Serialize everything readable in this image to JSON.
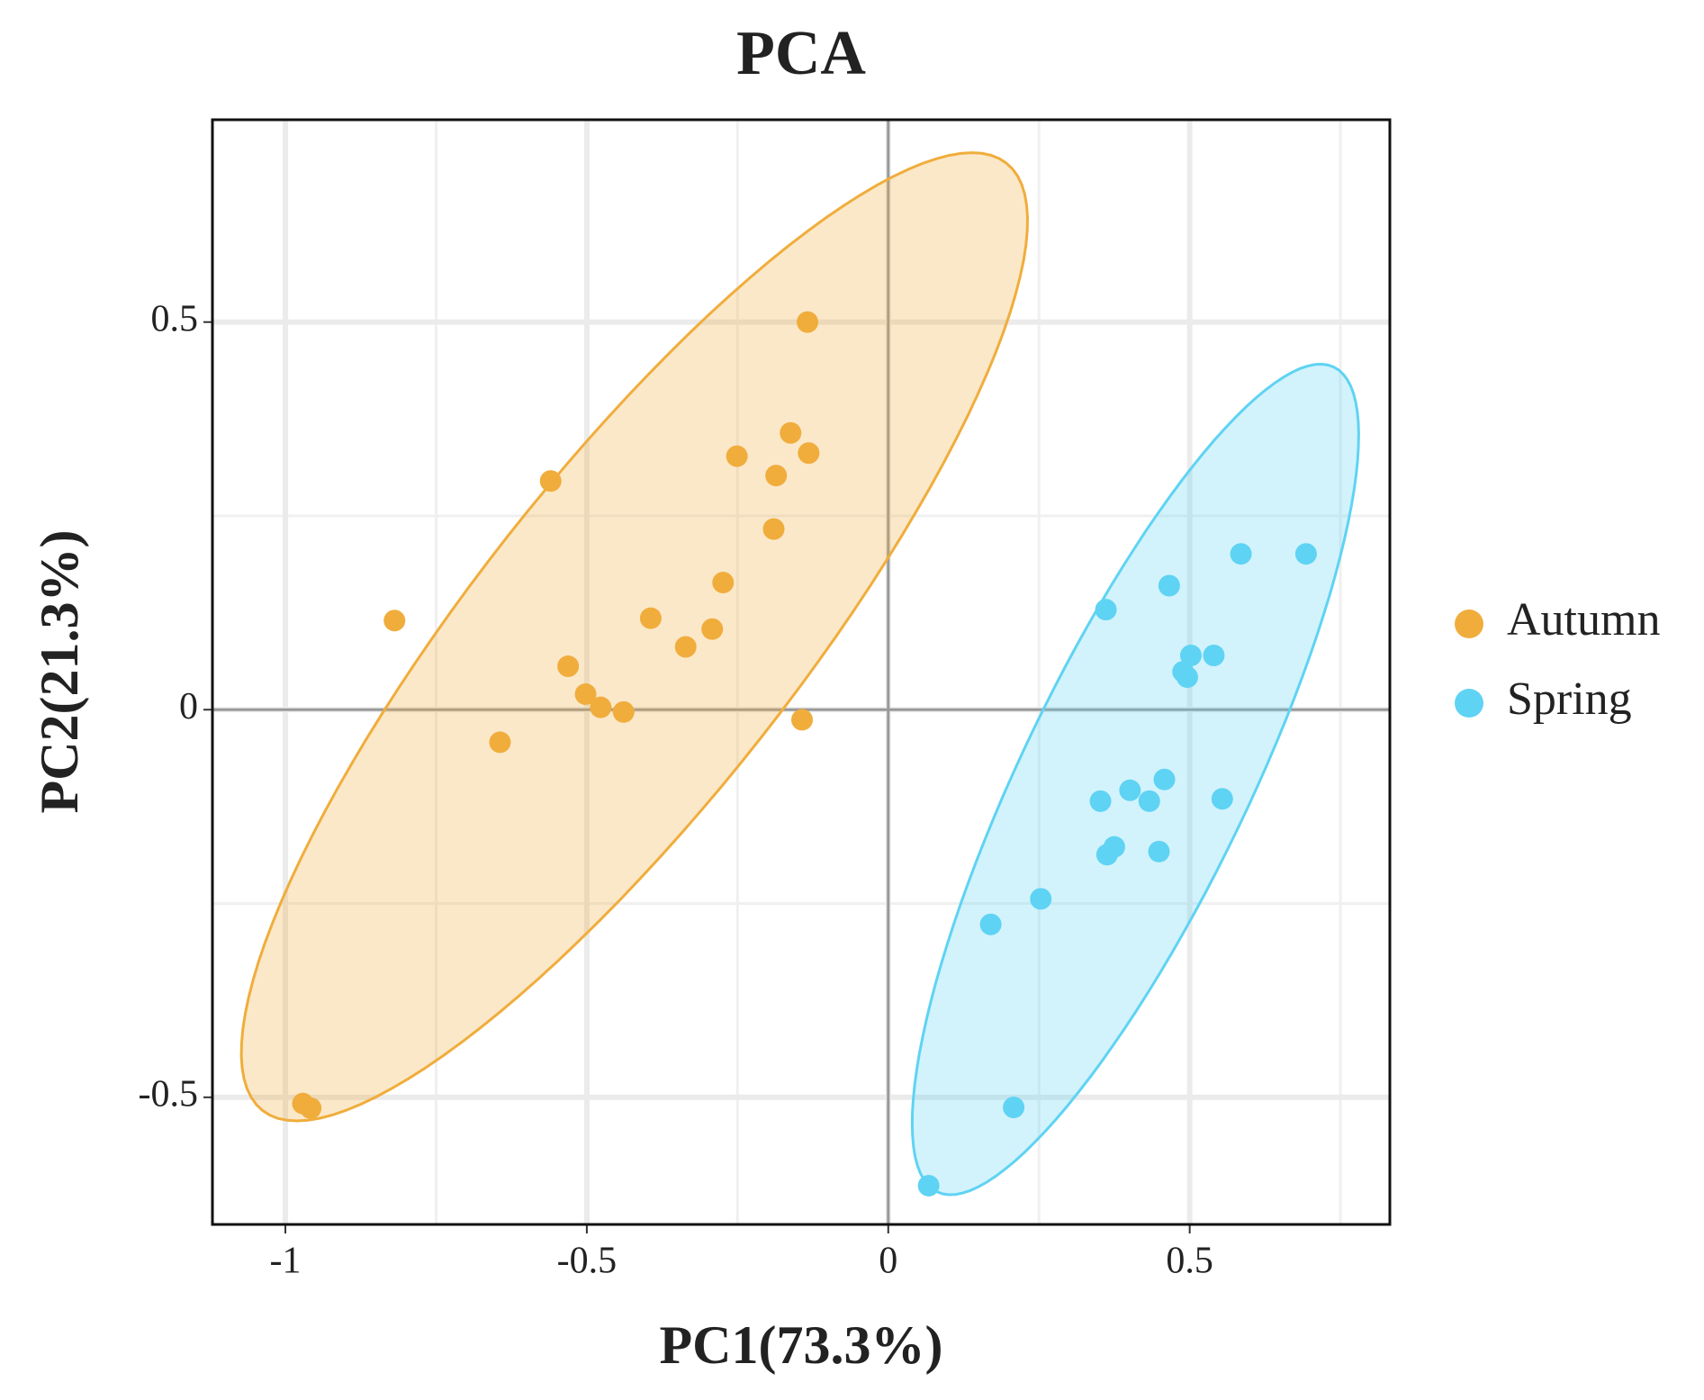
{
  "chart_data": {
    "type": "scatter",
    "title": "PCA",
    "x_label": "PC1(73.3%)",
    "y_label": "PC2(21.3%)",
    "xlim": [
      -1.121,
      0.832
    ],
    "ylim": [
      -0.664,
      0.761
    ],
    "xticks": [
      -1,
      -0.5,
      0,
      0.5
    ],
    "yticks": [
      -0.5,
      0,
      0.5
    ],
    "xminor_ticks": [
      -0.75,
      -0.25,
      0.25,
      0.75
    ],
    "yminor_ticks": [
      -0.25,
      0.25
    ],
    "grid": true,
    "legend": "right",
    "series": [
      {
        "name": "Autumn",
        "color": "#f0ad3c",
        "x": [
          -0.134,
          -0.162,
          -0.251,
          -0.132,
          -0.186,
          -0.56,
          -0.19,
          -0.274,
          -0.819,
          -0.394,
          -0.292,
          -0.336,
          -0.531,
          -0.502,
          -0.477,
          -0.439,
          -0.143,
          -0.644,
          -0.971,
          -0.958
        ],
        "values": [
          0.5,
          0.357,
          0.327,
          0.331,
          0.302,
          0.295,
          0.233,
          0.164,
          0.115,
          0.118,
          0.104,
          0.081,
          0.056,
          0.02,
          0.003,
          -0.003,
          -0.013,
          -0.042,
          -0.508,
          -0.514
        ],
        "ellipse": {
          "center": [
            -0.421,
            0.094
          ],
          "axis1": [
            0.617,
            0.611
          ],
          "axis2": [
            0.211,
            -0.129
          ]
        }
      },
      {
        "name": "Spring",
        "color": "#5fd3f3",
        "x": [
          0.585,
          0.693,
          0.466,
          0.361,
          0.502,
          0.54,
          0.489,
          0.496,
          0.458,
          0.401,
          0.352,
          0.433,
          0.554,
          0.375,
          0.363,
          0.449,
          0.253,
          0.17,
          0.208,
          0.067
        ],
        "values": [
          0.201,
          0.201,
          0.16,
          0.129,
          0.07,
          0.07,
          0.049,
          0.042,
          -0.09,
          -0.104,
          -0.118,
          -0.118,
          -0.115,
          -0.177,
          -0.187,
          -0.183,
          -0.244,
          -0.277,
          -0.513,
          -0.614
        ],
        "ellipse": {
          "center": [
            0.41,
            -0.09
          ],
          "axis1": [
            0.329,
            0.532
          ],
          "axis2": [
            0.17,
            -0.063
          ]
        }
      }
    ]
  }
}
